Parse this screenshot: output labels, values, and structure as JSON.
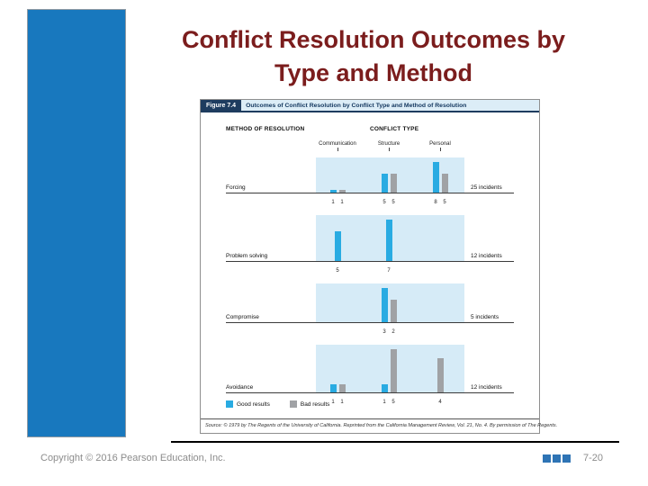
{
  "slide": {
    "title_line1": "Conflict Resolution Outcomes by",
    "title_line2": "Type and Method",
    "copyright": "Copyright © 2016 Pearson Education, Inc.",
    "page_number": "7-20",
    "accent_color": "#1878be",
    "title_color": "#7b1d1d",
    "footer_squares": 3,
    "footer_square_color": "#2e74b5"
  },
  "figure": {
    "label": "Figure 7.4",
    "header_title": "Outcomes of Conflict Resolution by Conflict Type and Method of Resolution",
    "source": "Source: © 1979 by The Regents of the University of California. Reprinted from the California Management Review, Vol. 21, No. 4. By permission of The Regents."
  },
  "chart_data": {
    "type": "bar",
    "title": "Outcomes of Conflict Resolution by Conflict Type and Method of Resolution",
    "group_axis_label": "METHOD OF RESOLUTION",
    "column_axis_label": "CONFLICT TYPE",
    "columns": [
      "Communication",
      "Structure",
      "Personal"
    ],
    "legend": [
      {
        "label": "Good results",
        "type": "good",
        "color": "#29abe2"
      },
      {
        "label": "Bad results",
        "type": "bad",
        "color": "#a0a2a5"
      }
    ],
    "rows": [
      {
        "method": "Forcing",
        "incidents": "25 incidents",
        "values": [
          [
            {
              "type": "good",
              "value": 1
            },
            {
              "type": "bad",
              "value": 1
            }
          ],
          [
            {
              "type": "good",
              "value": 5
            },
            {
              "type": "bad",
              "value": 5
            }
          ],
          [
            {
              "type": "good",
              "value": 8
            },
            {
              "type": "bad",
              "value": 5
            }
          ]
        ]
      },
      {
        "method": "Problem solving",
        "incidents": "12 incidents",
        "values": [
          [
            {
              "type": "good",
              "value": 5
            }
          ],
          [
            {
              "type": "good",
              "value": 7
            }
          ],
          []
        ]
      },
      {
        "method": "Compromise",
        "incidents": "5 incidents",
        "values": [
          [],
          [
            {
              "type": "good",
              "value": 3
            },
            {
              "type": "bad",
              "value": 2
            }
          ],
          []
        ]
      },
      {
        "method": "Avoidance",
        "incidents": "12 incidents",
        "values": [
          [
            {
              "type": "good",
              "value": 1
            },
            {
              "type": "bad",
              "value": 1
            }
          ],
          [
            {
              "type": "good",
              "value": 1
            },
            {
              "type": "bad",
              "value": 5
            }
          ],
          [
            {
              "type": "bad",
              "value": 4
            }
          ]
        ]
      }
    ],
    "layout": {
      "band_color": "#d6ebf7",
      "row_band_heights": [
        40,
        52,
        44,
        54
      ],
      "column_centers": [
        24,
        81,
        138
      ],
      "legend_position": "bottom-left",
      "grid": false
    }
  }
}
